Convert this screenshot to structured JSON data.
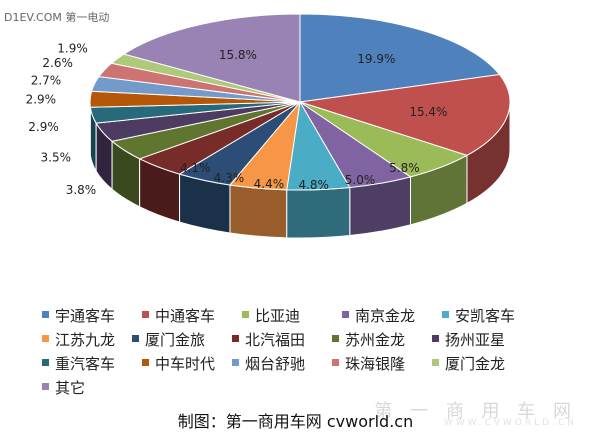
{
  "watermark_top": "D1EV.COM 第一电动",
  "caption": "制图：第一商用车网  cvworld.cn",
  "watermark_right": "第 一 商 用 车 网",
  "watermark_right_small": "WWW.CVWORLD.CN",
  "chart_data": {
    "type": "pie",
    "title": "",
    "legend_position": "bottom",
    "categories": [
      "宇通客车",
      "中通客车",
      "比亚迪",
      "南京金龙",
      "安凯客车",
      "江苏九龙",
      "厦门金旅",
      "北汽福田",
      "苏州金龙",
      "扬州亚星",
      "重汽客车",
      "中车时代",
      "烟台舒驰",
      "珠海银隆",
      "厦门金龙",
      "其它"
    ],
    "values": [
      19.9,
      15.4,
      5.8,
      5.0,
      4.8,
      4.4,
      4.3,
      4.1,
      3.8,
      3.5,
      2.9,
      2.9,
      2.7,
      2.6,
      1.9,
      15.8
    ],
    "value_labels": [
      "19.9%",
      "15.4%",
      "5.8%",
      "5.0%",
      "4.8%",
      "4.4%",
      "4.3%",
      "4.1%",
      "3.8%",
      "3.5%",
      "2.9%",
      "2.9%",
      "2.7%",
      "2.6%",
      "1.9%",
      "15.8%"
    ],
    "colors": [
      "#4F81BD",
      "#C0504D",
      "#9BBB59",
      "#8064A2",
      "#4BACC6",
      "#F79646",
      "#2C4D75",
      "#772C2A",
      "#5F7530",
      "#4D3B62",
      "#276A7C",
      "#B65708",
      "#729ACA",
      "#CD7371",
      "#AFC97A",
      "#9983B5"
    ]
  }
}
